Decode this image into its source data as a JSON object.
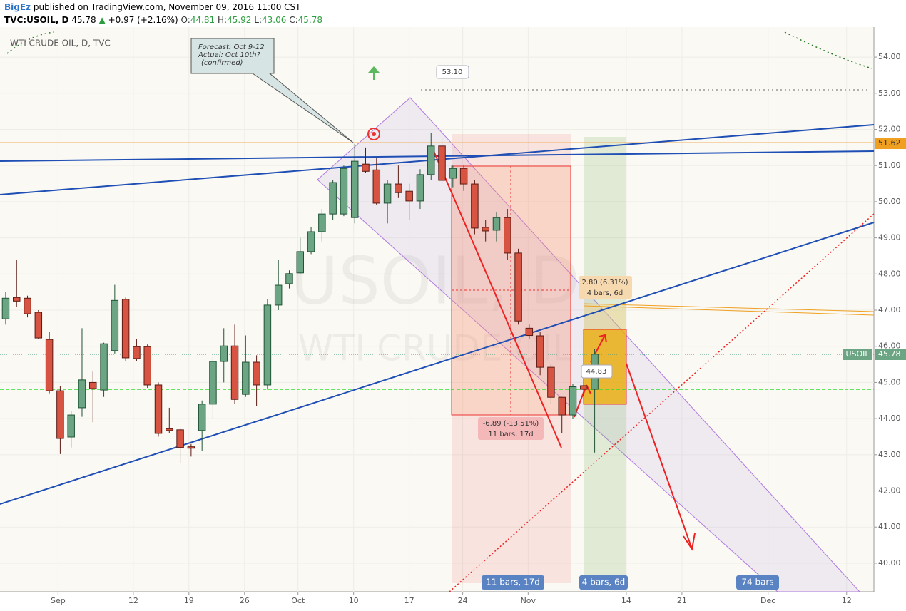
{
  "header": {
    "author": "BigEz",
    "published": "published on TradingView.com, November 09, 2016 11:00 CST",
    "symbol": "TVC:USOIL, D",
    "price": "45.78",
    "arrow": "▲",
    "change": "+0.97 (+2.16%)",
    "ohlc": [
      {
        "label": "O:",
        "value": "44.81"
      },
      {
        "label": "H:",
        "value": "45.92"
      },
      {
        "label": "L:",
        "value": "43.06"
      },
      {
        "label": "C:",
        "value": "45.78"
      }
    ]
  },
  "chart_data": {
    "type": "candlestick",
    "title": "WTI CRUDE OIL, D, TVC",
    "watermark": [
      "USOIL, D",
      "WTI CRUDE OIL"
    ],
    "up_color": "#6ba583",
    "down_color": "#d75442",
    "grid": true,
    "open": [
      46.76,
      47.35,
      47.33,
      46.94,
      46.19,
      44.77,
      43.49,
      44.3,
      45.0,
      44.79,
      45.88,
      47.3,
      45.99,
      45.99,
      44.93,
      43.72,
      43.69,
      43.22,
      43.67,
      44.4,
      45.58,
      46.01,
      44.67,
      45.56,
      44.93,
      47.14,
      47.73,
      48.03,
      48.62,
      49.17,
      49.66,
      49.66,
      49.56,
      51.04,
      50.88,
      49.96,
      50.49,
      50.29,
      50.02,
      50.75,
      51.54,
      50.65,
      50.92,
      50.49,
      49.29,
      49.21,
      49.56,
      48.58,
      46.5,
      46.29,
      45.42,
      44.59,
      44.1,
      44.91,
      44.81
    ],
    "high": [
      47.5,
      48.4,
      47.4,
      47.0,
      46.4,
      44.9,
      44.2,
      46.5,
      45.3,
      46.1,
      47.7,
      47.35,
      46.2,
      46.05,
      45.0,
      44.3,
      43.75,
      43.3,
      44.5,
      45.7,
      46.5,
      46.6,
      46.3,
      45.75,
      47.3,
      48.4,
      48.1,
      49.0,
      49.3,
      49.8,
      50.6,
      51.0,
      51.6,
      51.5,
      51.2,
      50.6,
      51.0,
      50.5,
      50.9,
      51.9,
      51.8,
      51.0,
      51.0,
      50.6,
      49.5,
      49.7,
      49.8,
      48.7,
      46.6,
      46.4,
      45.5,
      44.6,
      44.95,
      45.1,
      45.92
    ],
    "low": [
      46.6,
      47.1,
      46.8,
      46.2,
      44.7,
      43.02,
      43.2,
      44.05,
      43.9,
      44.6,
      45.8,
      45.6,
      45.6,
      44.85,
      43.5,
      43.6,
      42.77,
      42.95,
      43.1,
      44.0,
      45.0,
      44.4,
      44.6,
      44.35,
      44.8,
      47.0,
      47.6,
      48.0,
      48.55,
      48.9,
      49.5,
      49.6,
      49.4,
      50.8,
      49.9,
      49.4,
      50.1,
      49.5,
      49.8,
      50.6,
      50.5,
      50.4,
      50.3,
      49.1,
      48.9,
      48.9,
      48.4,
      46.6,
      46.2,
      45.2,
      44.4,
      43.6,
      44.0,
      44.6,
      43.06
    ],
    "close": [
      47.33,
      47.25,
      46.9,
      46.23,
      44.77,
      43.45,
      44.1,
      45.07,
      44.83,
      46.07,
      47.27,
      45.68,
      45.66,
      44.93,
      43.59,
      43.67,
      43.2,
      43.18,
      44.4,
      45.58,
      46.01,
      44.53,
      45.56,
      44.93,
      47.14,
      47.69,
      48.01,
      48.62,
      49.17,
      49.66,
      50.53,
      50.92,
      51.12,
      50.84,
      49.96,
      50.49,
      50.25,
      50.02,
      50.75,
      51.54,
      50.59,
      50.92,
      50.49,
      49.27,
      49.19,
      49.56,
      48.58,
      46.7,
      46.3,
      45.42,
      44.59,
      44.1,
      44.88,
      44.81,
      45.78
    ],
    "xlim": [
      -0.52,
      79.6
    ],
    "xticks": [
      {
        "value": 4.8,
        "label": "Sep"
      },
      {
        "value": 11.7,
        "label": "12"
      },
      {
        "value": 16.8,
        "label": "19"
      },
      {
        "value": 21.9,
        "label": "26"
      },
      {
        "value": 26.8,
        "label": "Oct"
      },
      {
        "value": 31.9,
        "label": "10"
      },
      {
        "value": 37.0,
        "label": "17"
      },
      {
        "value": 41.9,
        "label": "24"
      },
      {
        "value": 47.9,
        "label": "Nov"
      },
      {
        "value": 56.9,
        "label": "14"
      },
      {
        "value": 62.0,
        "label": "21"
      },
      {
        "value": 69.9,
        "label": "Dec"
      },
      {
        "value": 77.1,
        "label": "12"
      }
    ],
    "ylim": [
      39.21,
      54.83
    ],
    "yticks": [
      {
        "value": 40,
        "label": "40.00"
      },
      {
        "value": 41,
        "label": "41.00"
      },
      {
        "value": 42,
        "label": "42.00"
      },
      {
        "value": 43,
        "label": "43.00"
      },
      {
        "value": 44,
        "label": "44.00"
      },
      {
        "value": 45,
        "label": "45.00"
      },
      {
        "value": 46,
        "label": "46.00"
      },
      {
        "value": 47,
        "label": "47.00"
      },
      {
        "value": 48,
        "label": "48.00"
      },
      {
        "value": 49,
        "label": "49.00"
      },
      {
        "value": 50,
        "label": "50.00"
      },
      {
        "value": 51,
        "label": "51.00"
      },
      {
        "value": 52,
        "label": "52.00"
      },
      {
        "value": 53,
        "label": "53.00"
      },
      {
        "value": 54,
        "label": "54.00"
      }
    ],
    "annotations": [
      "Forecast: Oct 9-12",
      "Actual: Oct 10th?",
      "(confirmed)",
      "53.10",
      "2.80 (6.31%)",
      "4 bars, 6d",
      "-6.89 (-13.51%)",
      "11 bars, 17d",
      "44.83",
      "11 bars, 17d",
      "4 bars, 6d",
      "74 bars"
    ],
    "price_tags": [
      "51.62",
      "USOIL",
      "45.78"
    ]
  }
}
